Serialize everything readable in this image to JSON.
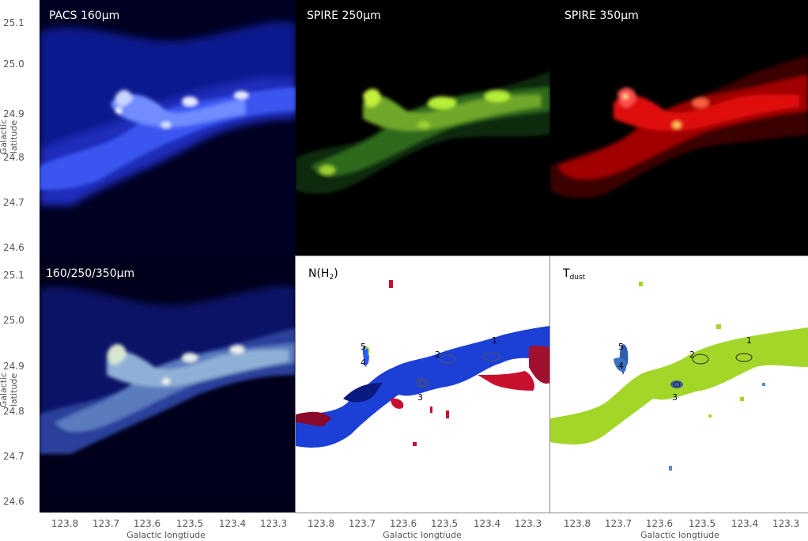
{
  "panels": {
    "pacs160": {
      "title": "PACS 160μm"
    },
    "spire250": {
      "title": "SPIRE 250μm"
    },
    "spire350": {
      "title": "SPIRE 350μm"
    },
    "composite": {
      "title": "160/250/350μm"
    },
    "nh2": {
      "title_main": "N(H",
      "title_sub": "2",
      "title_close": ")"
    },
    "tdust": {
      "title_main": "T",
      "title_sub": "dust"
    }
  },
  "axes": {
    "ylabel": "Galactic latitude",
    "xlabel": "Galactic longtiude",
    "yticks": [
      "25.1",
      "25.0",
      "24.9",
      "24.8",
      "24.7",
      "24.6"
    ],
    "xticks": [
      "123.8",
      "123.7",
      "123.6",
      "123.5",
      "123.4",
      "123.3"
    ]
  },
  "clumps": [
    "1",
    "2",
    "3",
    "4",
    "5"
  ],
  "colors": {
    "pacs": "#2a3cff",
    "spire250": "#b6ef38",
    "spire350": "#ff1a1a",
    "nh2_high": "#1c3fd6",
    "nh2_low": "#c8102e",
    "tdust": "#a4d62a"
  }
}
